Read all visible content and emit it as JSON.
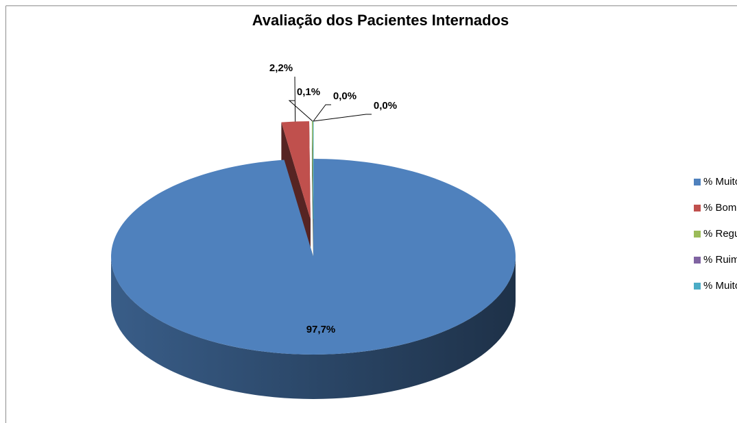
{
  "chart_data": {
    "type": "pie",
    "title": "Avaliação dos Pacientes Internados",
    "categories": [
      "% Muito Bom",
      "% Bom",
      "% Regular",
      "% Ruim",
      "% Muito Ruim"
    ],
    "values": [
      97.7,
      2.2,
      0.1,
      0.0,
      0.0
    ],
    "value_labels": [
      "97,7%",
      "2,2%",
      "0,1%",
      "0,0%",
      "0,0%"
    ],
    "colors": [
      "#4f81bd",
      "#c0504d",
      "#9bbb59",
      "#8064a2",
      "#4bacc6"
    ],
    "legend": "right"
  }
}
